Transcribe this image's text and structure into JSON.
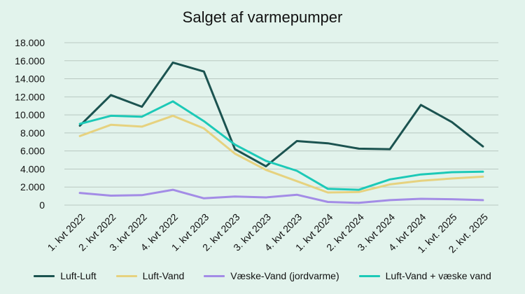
{
  "chart_data": {
    "type": "line",
    "title": "Salget af varmepumper",
    "xlabel": "",
    "ylabel": "",
    "ylim": [
      0,
      18000
    ],
    "yticks": [
      0,
      2000,
      4000,
      6000,
      8000,
      10000,
      12000,
      14000,
      16000,
      18000
    ],
    "ytick_labels": [
      "0",
      "2.000",
      "4.000",
      "6.000",
      "8.000",
      "10.000",
      "12.000",
      "14.000",
      "16.000",
      "18.000"
    ],
    "grid": true,
    "legend_position": "bottom",
    "categories": [
      "1. kvt 2022",
      "2. kvt 2022",
      "3. kvt 2022",
      "4. kvt 2022",
      "1. kvt 2023",
      "2. kvt 2023",
      "3. kvt 2023",
      "4. kvt 2023",
      "1. kvt 2024",
      "2. kvt 2024",
      "3. kvt 2024",
      "4. kvt 2024",
      "1. kvt. 2025",
      "2. kvt. 2025"
    ],
    "series": [
      {
        "name": "Luft-Luft",
        "color": "#1b5350",
        "values": [
          8800,
          12200,
          10900,
          15800,
          14800,
          6200,
          4300,
          7100,
          6850,
          6250,
          6200,
          11100,
          9200,
          6500
        ]
      },
      {
        "name": "Luft-Vand",
        "color": "#e6d27f",
        "values": [
          7650,
          8900,
          8700,
          9900,
          8500,
          5700,
          3900,
          2650,
          1400,
          1450,
          2300,
          2700,
          2950,
          3150
        ]
      },
      {
        "name": "Væske-Vand (jordvarme)",
        "color": "#a38ce6",
        "values": [
          1350,
          1050,
          1100,
          1700,
          750,
          950,
          850,
          1150,
          350,
          250,
          550,
          700,
          650,
          550
        ]
      },
      {
        "name": "Luft-Vand + væske vand",
        "color": "#1cc9b7",
        "values": [
          9000,
          9900,
          9800,
          11500,
          9300,
          6700,
          4900,
          3800,
          1800,
          1700,
          2850,
          3400,
          3650,
          3700
        ]
      }
    ]
  }
}
